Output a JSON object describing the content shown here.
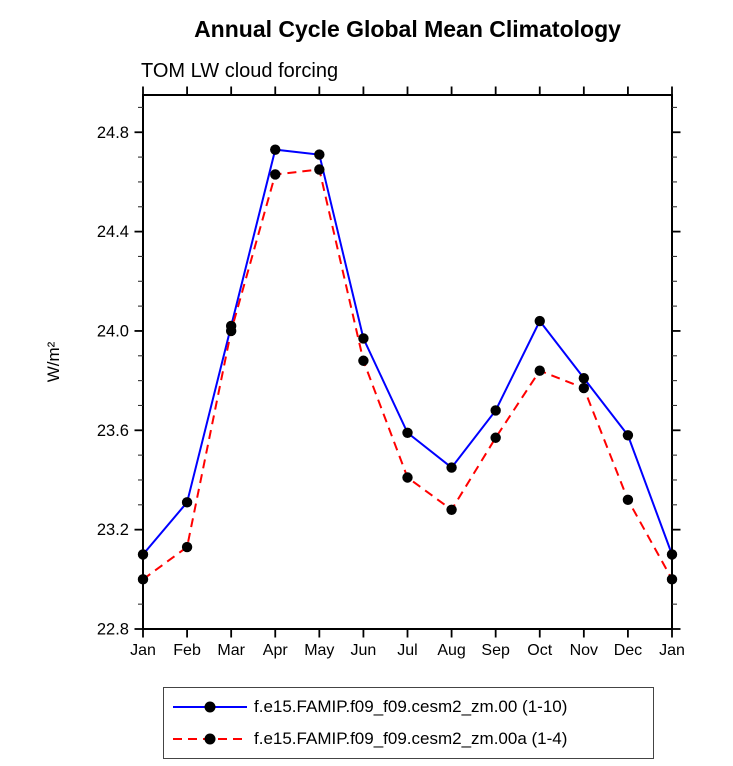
{
  "chart_data": {
    "type": "line",
    "title": "Annual Cycle Global Mean Climatology",
    "subtitle": "TOM LW cloud forcing",
    "ylabel": "W/m²",
    "xlabel": "",
    "categories": [
      "Jan",
      "Feb",
      "Mar",
      "Apr",
      "May",
      "Jun",
      "Jul",
      "Aug",
      "Sep",
      "Oct",
      "Nov",
      "Dec",
      "Jan"
    ],
    "ylim": [
      22.8,
      24.95
    ],
    "yticks_major": [
      22.8,
      23.2,
      23.6,
      24.0,
      24.4,
      24.8
    ],
    "ytick_minor_step": 0.1,
    "grid": false,
    "legend_position": "bottom-center",
    "axis_color": "#000000",
    "marker_color": "#000000",
    "series": [
      {
        "name": "f.e15.FAMIP.f09_f09.cesm2_zm.00 (1-10)",
        "color": "#0000ff",
        "line_style": "solid",
        "marker": "circle",
        "values": [
          23.1,
          23.31,
          24.02,
          24.73,
          24.71,
          23.97,
          23.59,
          23.45,
          23.68,
          24.04,
          23.81,
          23.58,
          23.1
        ]
      },
      {
        "name": "f.e15.FAMIP.f09_f09.cesm2_zm.00a (1-4)",
        "color": "#ff0000",
        "line_style": "dashed",
        "marker": "circle",
        "values": [
          23.0,
          23.13,
          24.0,
          24.63,
          24.65,
          23.88,
          23.41,
          23.28,
          23.57,
          23.84,
          23.77,
          23.32,
          23.0
        ]
      }
    ]
  }
}
